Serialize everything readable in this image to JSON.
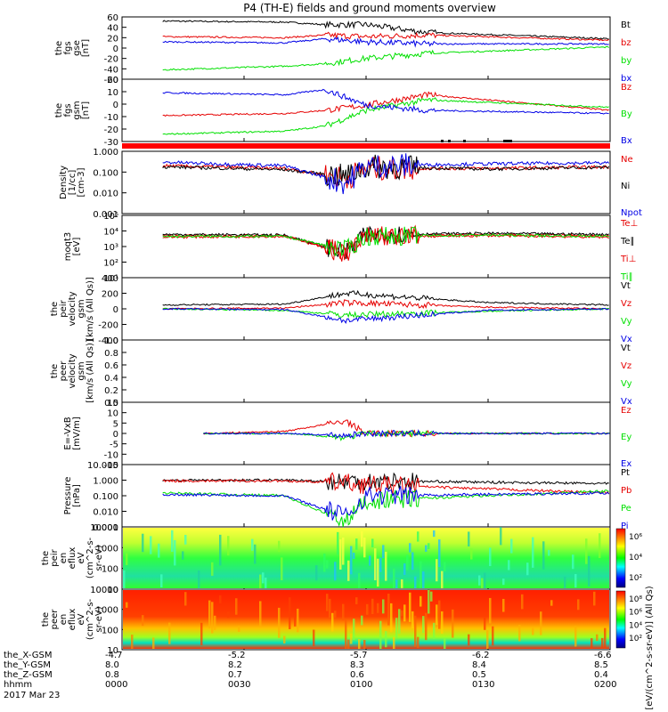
{
  "title": "P4 (TH-E) fields and ground moments overview",
  "colors": {
    "black": "#000000",
    "red": "#e60000",
    "green": "#00e000",
    "blue": "#0000e6"
  },
  "panels": [
    {
      "id": "fgs_gse",
      "ylabel": [
        "the",
        "fgs",
        "gse",
        "[nT]"
      ],
      "ticks": [
        "60",
        "40",
        "20",
        "0",
        "-20",
        "-40",
        "-60"
      ],
      "legend": [
        {
          "t": "Bt",
          "c": "black"
        },
        {
          "t": "bz",
          "c": "red"
        },
        {
          "t": "by",
          "c": "green"
        },
        {
          "t": "bx",
          "c": "blue"
        }
      ]
    },
    {
      "id": "fgs_gsm",
      "ylabel": [
        "the",
        "fgs",
        "gsm",
        "[nT]"
      ],
      "ticks": [
        "20",
        "10",
        "0",
        "-10",
        "-20",
        "-30"
      ],
      "legend": [
        {
          "t": "Bz",
          "c": "red"
        },
        {
          "t": "By",
          "c": "green"
        },
        {
          "t": "Bx",
          "c": "blue"
        }
      ]
    },
    {
      "id": "density",
      "ylabel": [
        "Density",
        "[1/cc]",
        "[cm-3]"
      ],
      "ticks": [
        "1.000",
        "0.100",
        "0.010",
        "0.001"
      ],
      "legend": [
        {
          "t": "Ne",
          "c": "red"
        },
        {
          "t": "Ni",
          "c": "black"
        },
        {
          "t": "Npot",
          "c": "blue"
        }
      ]
    },
    {
      "id": "temp",
      "ylabel": [
        "moqt3",
        "[eV]"
      ],
      "ticks": [
        "10⁵",
        "10⁴",
        "10³",
        "10²",
        "10¹"
      ],
      "legend": [
        {
          "t": "Te⊥",
          "c": "red"
        },
        {
          "t": "Te∥",
          "c": "black"
        },
        {
          "t": "Ti⊥",
          "c": "red"
        },
        {
          "t": "Ti∥",
          "c": "green"
        }
      ]
    },
    {
      "id": "peir_vel",
      "ylabel": [
        "the",
        "peir",
        "velocity",
        "gsm",
        "[km/s (All Qs)]"
      ],
      "ticks": [
        "400",
        "200",
        "0",
        "-200",
        "-400"
      ],
      "legend": [
        {
          "t": "Vt",
          "c": "black"
        },
        {
          "t": "Vz",
          "c": "red"
        },
        {
          "t": "Vy",
          "c": "green"
        },
        {
          "t": "Vx",
          "c": "blue"
        }
      ]
    },
    {
      "id": "peer_vel",
      "ylabel": [
        "the",
        "peer",
        "velocity",
        "gsm",
        "[km/s (All Qs)]"
      ],
      "ticks": [
        "1.0",
        "0.8",
        "0.6",
        "0.4",
        "0.2",
        "0.0"
      ],
      "legend": [
        {
          "t": "Vt",
          "c": "black"
        },
        {
          "t": "Vz",
          "c": "red"
        },
        {
          "t": "Vy",
          "c": "green"
        },
        {
          "t": "Vx",
          "c": "blue"
        }
      ]
    },
    {
      "id": "efield",
      "ylabel": [
        "E=-VxB",
        "[mV/m]"
      ],
      "ticks": [
        "15",
        "10",
        "5",
        "0",
        "-5",
        "-10",
        "-15"
      ],
      "legend": [
        {
          "t": "Ez",
          "c": "red"
        },
        {
          "t": "Ey",
          "c": "green"
        },
        {
          "t": "Ex",
          "c": "blue"
        }
      ]
    },
    {
      "id": "pressure",
      "ylabel": [
        "Pressure",
        "[nPa]"
      ],
      "ticks": [
        "10.000",
        "1.000",
        "0.100",
        "0.010",
        "0.001"
      ],
      "legend": [
        {
          "t": "Pt",
          "c": "black"
        },
        {
          "t": "Pb",
          "c": "red"
        },
        {
          "t": "Pe",
          "c": "green"
        },
        {
          "t": "Pi",
          "c": "blue"
        }
      ]
    },
    {
      "id": "peir_spec",
      "ylabel": [
        "the",
        "peir",
        "en",
        "eflux",
        "eV",
        "(cm^2-s-",
        "sr-eV)"
      ],
      "ticks": [
        "10000",
        "1000",
        "100",
        "10"
      ],
      "colorbar": [
        "10⁶",
        "10⁴",
        "10²"
      ],
      "colorbar_label": "[eV/(cm^2-s-sr-eV)] (All Qs)"
    },
    {
      "id": "peer_spec",
      "ylabel": [
        "the",
        "peer",
        "en",
        "eflux",
        "eV",
        "(cm^2-s-",
        "sr-eV)"
      ],
      "ticks": [
        "10000",
        "1000",
        "100",
        "10"
      ],
      "colorbar": [
        "10⁸",
        "10⁶",
        "10⁴",
        "10²"
      ],
      "colorbar_label": "[eV/(cm^2-s-sr-eV)] (All Qs)"
    }
  ],
  "shared_colorbar_label": "[eV/(cm^2-s-sr-eV)] (All Qs)",
  "footer": {
    "row_labels": [
      "the_X-GSM",
      "the_Y-GSM",
      "the_Z-GSM",
      "hhmm",
      "2017 Mar 23"
    ],
    "columns": [
      {
        "x": "-4.7",
        "y": "8.0",
        "z": "0.8",
        "t": "0000"
      },
      {
        "x": "-5.2",
        "y": "8.2",
        "z": "0.7",
        "t": "0030"
      },
      {
        "x": "-5.7",
        "y": "8.3",
        "z": "0.6",
        "t": "0100"
      },
      {
        "x": "-6.2",
        "y": "8.4",
        "z": "0.5",
        "t": "0130"
      },
      {
        "x": "-6.6",
        "y": "8.5",
        "z": "0.4",
        "t": "0200"
      }
    ]
  },
  "chart_data": {
    "type": "line",
    "title": "P4 (TH-E) fields and ground moments overview",
    "x_time": [
      "0000",
      "0030",
      "0100",
      "0130",
      "0200"
    ],
    "date": "2017 Mar 23",
    "panels": [
      {
        "ylabel": "the fgs gse [nT]",
        "ylim": [
          -60,
          60
        ],
        "series": [
          {
            "name": "Bt",
            "t": [
              "0010",
              "0040",
              "0050",
              "0100",
              "0115",
              "0200"
            ],
            "values": [
              52,
              50,
              45,
              45,
              30,
              18
            ]
          },
          {
            "name": "bz",
            "t": [
              "0010",
              "0040",
              "0050",
              "0100",
              "0115",
              "0200"
            ],
            "values": [
              22,
              20,
              25,
              22,
              25,
              15
            ]
          },
          {
            "name": "by",
            "t": [
              "0010",
              "0040",
              "0050",
              "0100",
              "0115",
              "0200"
            ],
            "values": [
              -42,
              -35,
              -30,
              -20,
              -10,
              2
            ]
          },
          {
            "name": "bx",
            "t": [
              "0010",
              "0040",
              "0050",
              "0100",
              "0115",
              "0200"
            ],
            "values": [
              12,
              10,
              18,
              12,
              8,
              8
            ]
          }
        ]
      },
      {
        "ylabel": "the fgs gsm [nT]",
        "ylim": [
          -35,
          25
        ],
        "series": [
          {
            "name": "Bz",
            "t": [
              "0010",
              "0040",
              "0050",
              "0100",
              "0115",
              "0200"
            ],
            "values": [
              -10,
              -8,
              -5,
              0,
              10,
              -5
            ]
          },
          {
            "name": "By",
            "t": [
              "0010",
              "0040",
              "0050",
              "0100",
              "0115",
              "0200"
            ],
            "values": [
              -28,
              -25,
              -20,
              -5,
              5,
              -2
            ]
          },
          {
            "name": "Bx",
            "t": [
              "0010",
              "0040",
              "0050",
              "0100",
              "0115",
              "0200"
            ],
            "values": [
              12,
              10,
              15,
              0,
              -5,
              -8
            ]
          }
        ]
      },
      {
        "ylabel": "Density [1/cc]",
        "ylim": [
          0.001,
          1.0
        ],
        "scale": "log",
        "series": [
          {
            "name": "Ne",
            "t": [
              "0010",
              "0040",
              "0055",
              "0100",
              "0130",
              "0200"
            ],
            "values": [
              0.2,
              0.15,
              0.05,
              0.15,
              0.15,
              0.18
            ]
          },
          {
            "name": "Ni",
            "t": [
              "0010",
              "0040",
              "0055",
              "0100",
              "0130",
              "0200"
            ],
            "values": [
              0.18,
              0.13,
              0.06,
              0.18,
              0.14,
              0.17
            ]
          },
          {
            "name": "Npot",
            "t": [
              "0010",
              "0040",
              "0055",
              "0100",
              "0130",
              "0200"
            ],
            "values": [
              0.3,
              0.2,
              0.03,
              0.2,
              0.25,
              0.28
            ]
          }
        ]
      },
      {
        "ylabel": "moqt3 [eV]",
        "ylim": [
          10,
          100000
        ],
        "scale": "log",
        "series": [
          {
            "name": "Te⊥",
            "t": [
              "0010",
              "0040",
              "0055",
              "0100",
              "0130",
              "0200"
            ],
            "values": [
              5000,
              5000,
              300,
              5000,
              6000,
              5000
            ]
          },
          {
            "name": "Te∥",
            "t": [
              "0010",
              "0040",
              "0055",
              "0100",
              "0130",
              "0200"
            ],
            "values": [
              6000,
              5500,
              400,
              6000,
              7000,
              6000
            ]
          },
          {
            "name": "Ti⊥",
            "t": [
              "0010",
              "0040",
              "0055",
              "0100",
              "0130",
              "0200"
            ],
            "values": [
              4000,
              4500,
              500,
              4000,
              5000,
              4000
            ]
          },
          {
            "name": "Ti∥",
            "t": [
              "0010",
              "0040",
              "0055",
              "0100",
              "0130",
              "0200"
            ],
            "values": [
              4500,
              4500,
              600,
              4500,
              5500,
              4500
            ]
          }
        ]
      },
      {
        "ylabel": "the peir velocity gsm [km/s (All Qs)]",
        "ylim": [
          -400,
          400
        ],
        "series": [
          {
            "name": "Vt",
            "t": [
              "0010",
              "0040",
              "0055",
              "0130",
              "0200"
            ],
            "values": [
              50,
              60,
              200,
              80,
              50
            ]
          },
          {
            "name": "Vz",
            "t": [
              "0010",
              "0040",
              "0055",
              "0130",
              "0200"
            ],
            "values": [
              0,
              10,
              80,
              20,
              0
            ]
          },
          {
            "name": "Vy",
            "t": [
              "0010",
              "0040",
              "0055",
              "0130",
              "0200"
            ],
            "values": [
              0,
              -20,
              -80,
              -30,
              0
            ]
          },
          {
            "name": "Vx",
            "t": [
              "0010",
              "0040",
              "0055",
              "0130",
              "0200"
            ],
            "values": [
              0,
              -10,
              -150,
              -20,
              0
            ]
          }
        ]
      },
      {
        "ylabel": "the peer velocity gsm [km/s (All Qs)]",
        "ylim": [
          0,
          1
        ],
        "series": []
      },
      {
        "ylabel": "E=-VxB [mV/m]",
        "ylim": [
          -15,
          15
        ],
        "series": [
          {
            "name": "Ez",
            "t": [
              "0020",
              "0040",
              "0055",
              "0100",
              "0200"
            ],
            "values": [
              0,
              1,
              6,
              0,
              0
            ]
          },
          {
            "name": "Ey",
            "t": [
              "0020",
              "0040",
              "0055",
              "0100",
              "0200"
            ],
            "values": [
              0,
              0,
              -2,
              0,
              0
            ]
          },
          {
            "name": "Ex",
            "t": [
              "0020",
              "0040",
              "0055",
              "0100",
              "0200"
            ],
            "values": [
              0,
              0,
              -1,
              0,
              0
            ]
          }
        ]
      },
      {
        "ylabel": "Pressure [nPa]",
        "ylim": [
          0.001,
          10
        ],
        "scale": "log",
        "series": [
          {
            "name": "Pt",
            "t": [
              "0010",
              "0040",
              "0055",
              "0100",
              "0200"
            ],
            "values": [
              1.0,
              1.0,
              0.8,
              0.9,
              0.6
            ]
          },
          {
            "name": "Pb",
            "t": [
              "0010",
              "0040",
              "0055",
              "0100",
              "0200"
            ],
            "values": [
              0.9,
              0.9,
              0.7,
              0.5,
              0.15
            ]
          },
          {
            "name": "Pe",
            "t": [
              "0010",
              "0040",
              "0055",
              "0100",
              "0200"
            ],
            "values": [
              0.15,
              0.1,
              0.002,
              0.05,
              0.2
            ]
          },
          {
            "name": "Pi",
            "t": [
              "0010",
              "0040",
              "0055",
              "0100",
              "0200"
            ],
            "values": [
              0.12,
              0.1,
              0.005,
              0.1,
              0.15
            ]
          }
        ]
      }
    ]
  }
}
